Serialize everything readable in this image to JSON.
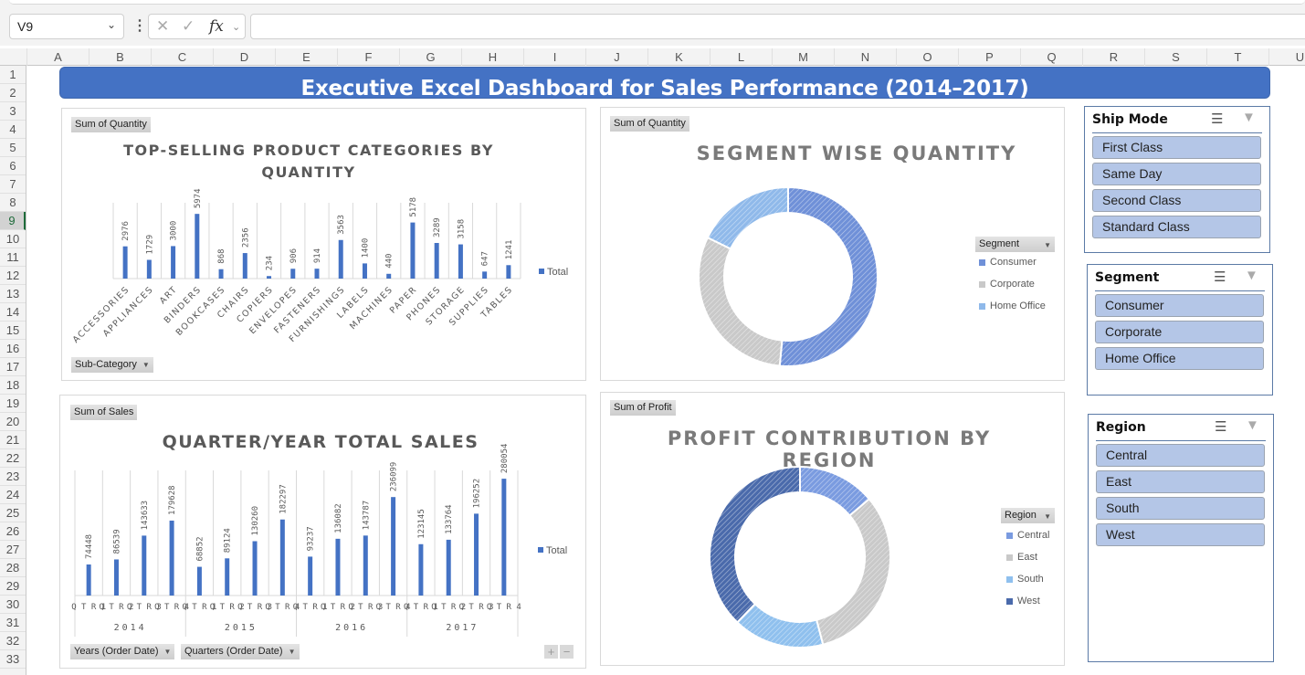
{
  "formula_bar": {
    "name_box": "V9",
    "cancel_icon": "✕",
    "enter_icon": "✓",
    "fx_label": "fx",
    "formula_value": ""
  },
  "columns": [
    "A",
    "B",
    "C",
    "D",
    "E",
    "F",
    "G",
    "H",
    "I",
    "J",
    "K",
    "L",
    "M",
    "N",
    "O",
    "P",
    "Q",
    "R",
    "S",
    "T",
    "U"
  ],
  "rows": [
    "1",
    "2",
    "3",
    "4",
    "5",
    "6",
    "7",
    "8",
    "9",
    "10",
    "11",
    "12",
    "13",
    "14",
    "15",
    "16",
    "17",
    "18",
    "19",
    "20",
    "21",
    "22",
    "23",
    "24",
    "25",
    "26",
    "27",
    "28",
    "29",
    "30",
    "31",
    "32",
    "33"
  ],
  "selected_row": "9",
  "dashboard_title": "Executive Excel Dashboard for Sales Performance (2014–2017)",
  "colors": {
    "accent": "#4472c4",
    "slicer_item": "#b4c6e7",
    "consumer": "#6f90d8",
    "corporate": "#c9c9c9",
    "home_office": "#8fb9ea",
    "central": "#7a9be0",
    "east": "#c9c9c9",
    "south": "#8fc0ee",
    "west": "#4a6aab"
  },
  "chart_data": [
    {
      "type": "bar",
      "value_field": "Sum of Quantity",
      "axis_field": "Sub-Category",
      "title": "TOP-SELLING PRODUCT CATEGORIES BY QUANTITY",
      "title_line1": "TOP-SELLING PRODUCT CATEGORIES BY",
      "title_line2": "QUANTITY",
      "categories": [
        "ACCESSORIES",
        "APPLIANCES",
        "ART",
        "BINDERS",
        "BOOKCASES",
        "CHAIRS",
        "COPIERS",
        "ENVELOPES",
        "FASTENERS",
        "FURNISHINGS",
        "LABELS",
        "MACHINES",
        "PAPER",
        "PHONES",
        "STORAGE",
        "SUPPLIES",
        "TABLES"
      ],
      "values": [
        2976,
        1729,
        3000,
        5974,
        868,
        2356,
        234,
        906,
        914,
        3563,
        1400,
        440,
        5178,
        3289,
        3158,
        647,
        1241
      ],
      "legend": [
        "Total"
      ],
      "legend_position": "right",
      "ylim": [
        0,
        7000
      ],
      "xlabel": "",
      "ylabel": ""
    },
    {
      "type": "bar",
      "value_field": "Sum of Sales",
      "axis_fields": [
        "Years (Order Date)",
        "Quarters (Order Date)"
      ],
      "title": "QUARTER/YEAR TOTAL SALES",
      "groups": [
        "2014",
        "2015",
        "2016",
        "2017"
      ],
      "categories": [
        "QTR1",
        "QTR2",
        "QTR3",
        "QTR4",
        "QTR1",
        "QTR2",
        "QTR3",
        "QTR4",
        "QTR1",
        "QTR2",
        "QTR3",
        "QTR4",
        "QTR1",
        "QTR2",
        "QTR3",
        "QTR4"
      ],
      "category_labels": [
        "Q T R 1",
        "Q T R 2",
        "Q T R 3",
        "Q T R 4"
      ],
      "values": [
        74448,
        86539,
        143633,
        179628,
        68852,
        89124,
        130260,
        182297,
        93237,
        136082,
        143787,
        236099,
        123145,
        133764,
        196252,
        280054
      ],
      "legend": [
        "Total"
      ],
      "legend_position": "right",
      "ylim": [
        0,
        300000
      ],
      "xlabel": "",
      "ylabel": ""
    },
    {
      "type": "pie",
      "variant": "donut",
      "value_field": "Sum of Quantity",
      "title": "SEGMENT WISE QUANTITY",
      "legend_title": "Segment",
      "legend_position": "right",
      "labels": [
        "Consumer",
        "Corporate",
        "Home Office"
      ],
      "values": [
        51.5,
        30.7,
        17.8
      ],
      "units": "percent of total (estimated)"
    },
    {
      "type": "pie",
      "variant": "donut",
      "value_field": "Sum of Profit",
      "title": "PROFIT CONTRIBUTION BY REGION",
      "legend_title": "Region",
      "legend_position": "right",
      "labels": [
        "Central",
        "East",
        "South",
        "West"
      ],
      "values": [
        13.9,
        32.0,
        16.3,
        37.8
      ],
      "units": "percent of total (estimated)"
    }
  ],
  "slicers": [
    {
      "title": "Ship Mode",
      "items": [
        "First Class",
        "Same Day",
        "Second Class",
        "Standard Class"
      ]
    },
    {
      "title": "Segment",
      "items": [
        "Consumer",
        "Corporate",
        "Home Office"
      ]
    },
    {
      "title": "Region",
      "items": [
        "Central",
        "East",
        "South",
        "West"
      ]
    }
  ],
  "zoom_buttons": {
    "expand": "+",
    "collapse": "−"
  },
  "dropdown_glyph": "▼"
}
